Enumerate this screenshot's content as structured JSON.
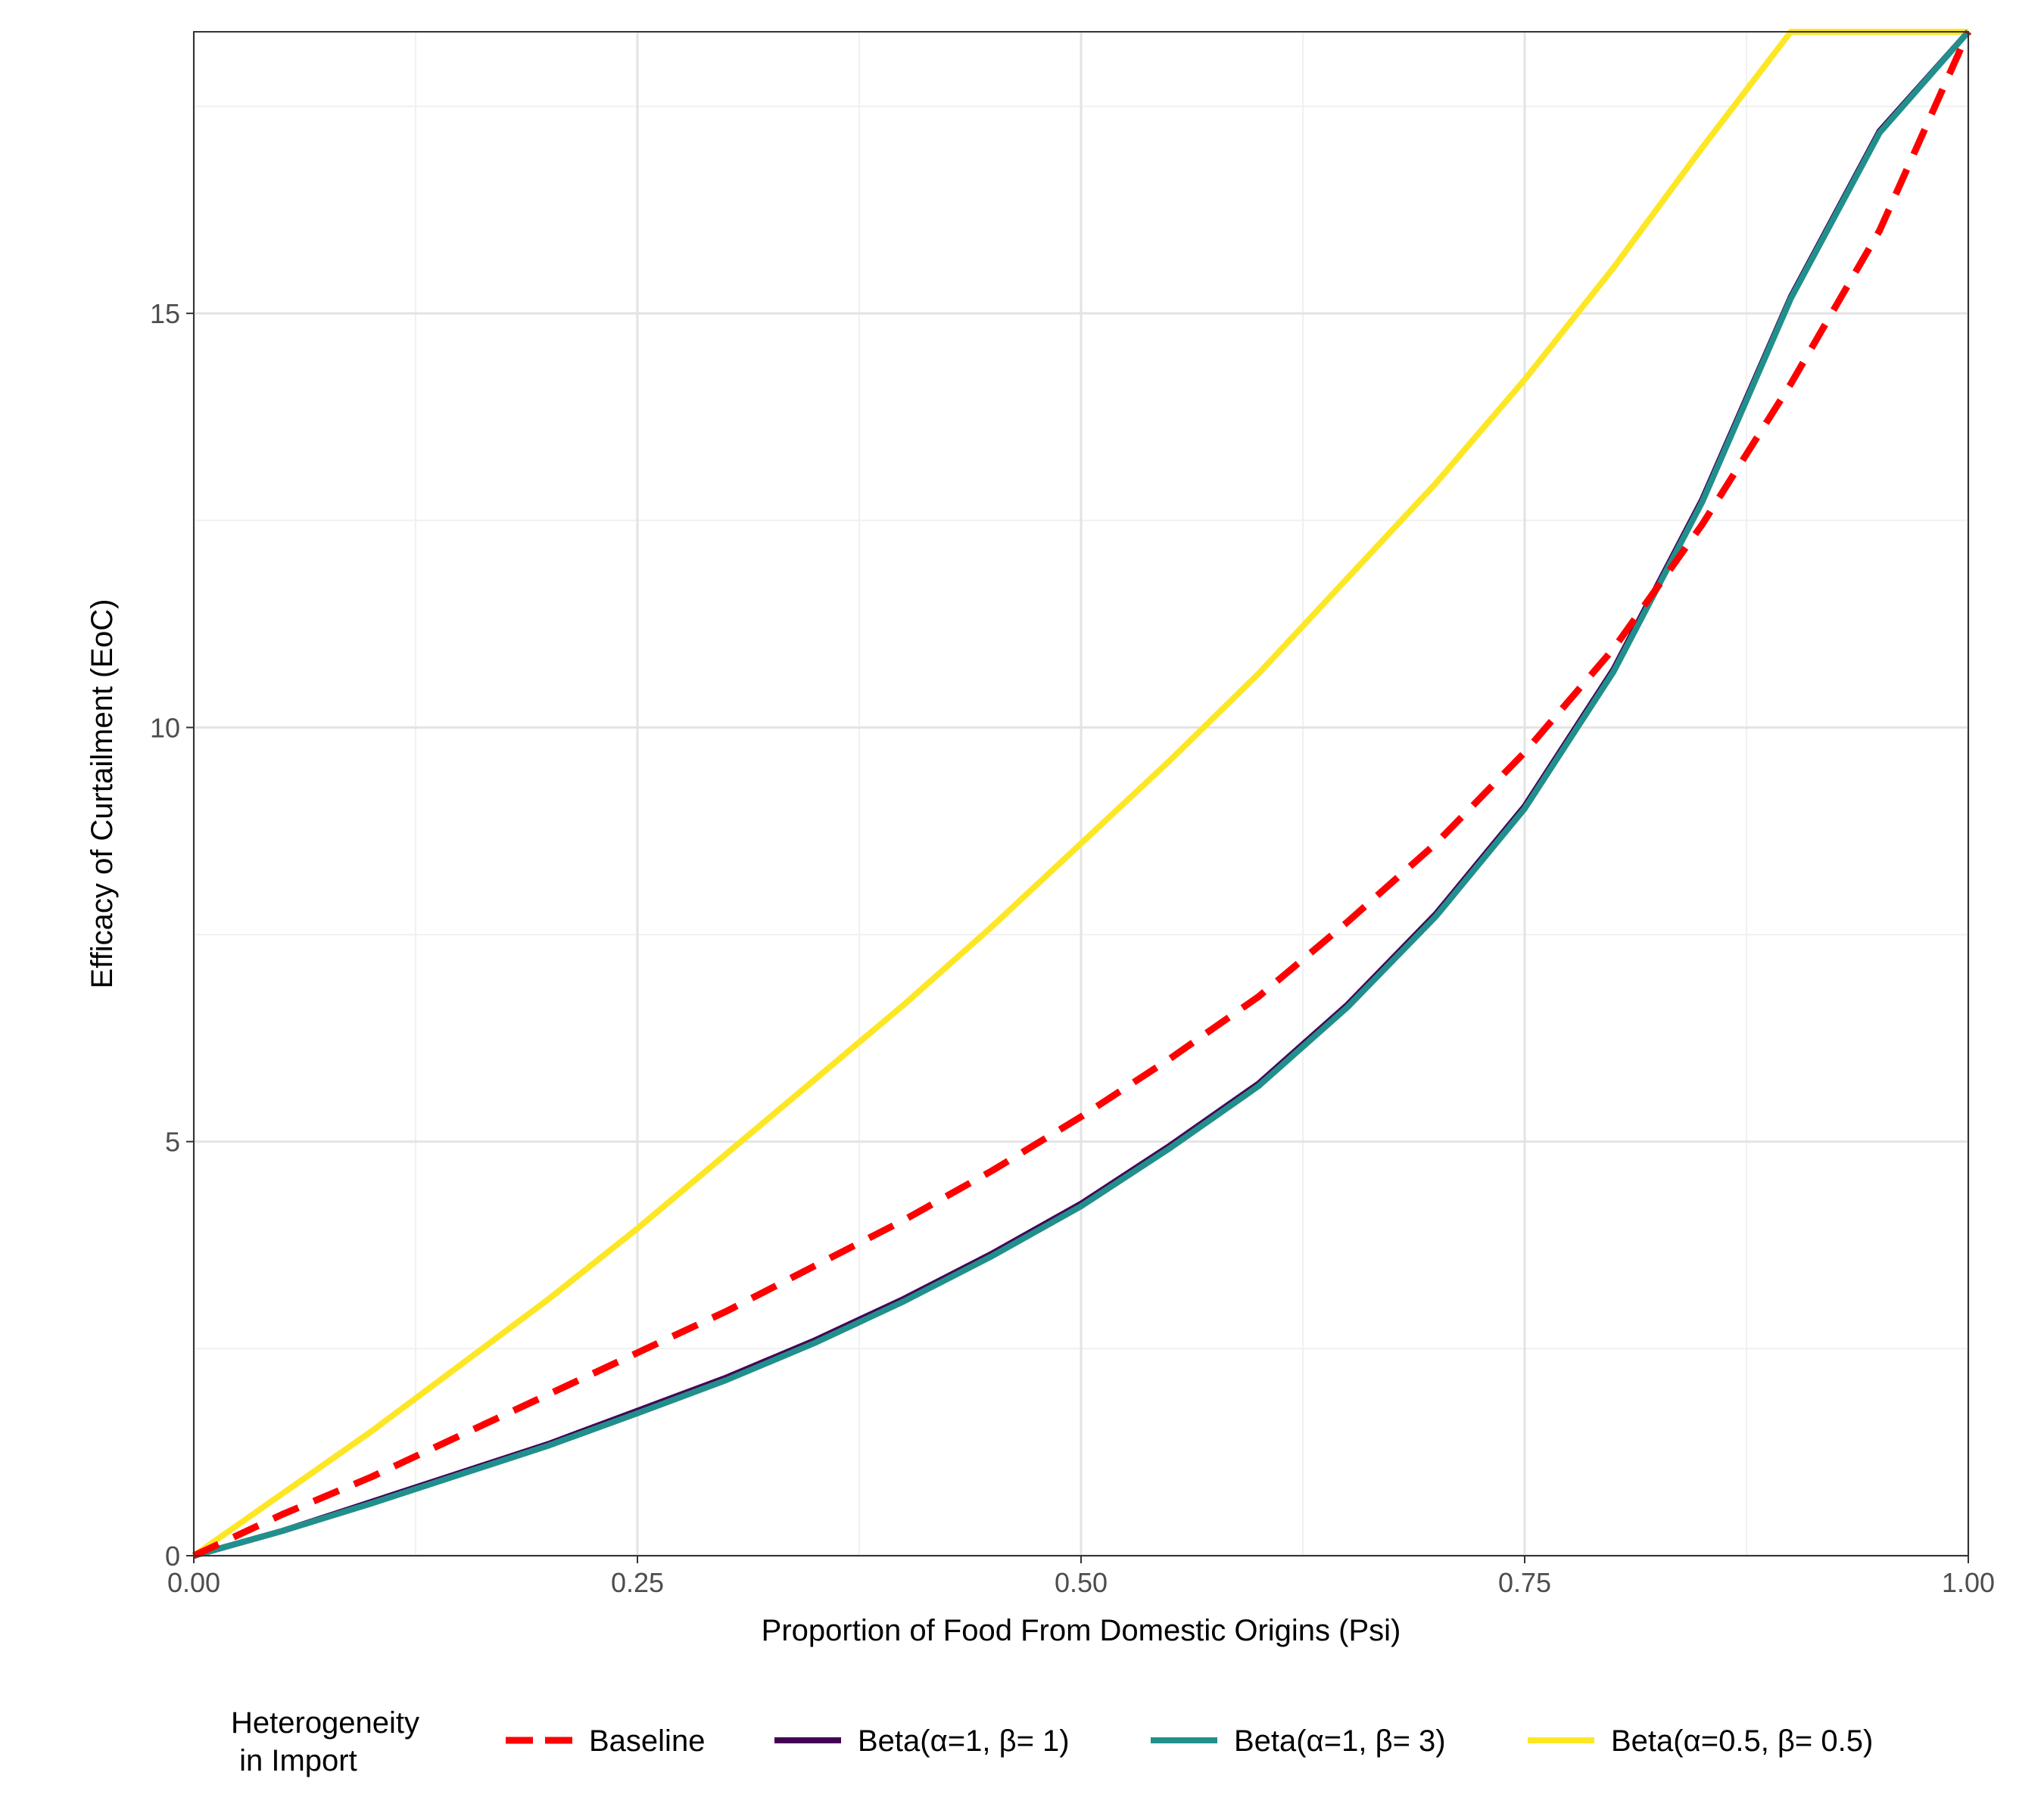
{
  "chart_data": {
    "type": "line",
    "title": "",
    "xlabel": "Proportion of Food From Domestic Origins (Psi)",
    "ylabel": "Efficacy of Curtailment (EoC)",
    "xlim": [
      0,
      1
    ],
    "ylim": [
      0,
      18.4
    ],
    "x_ticks": [
      {
        "value": 0.0,
        "label": "0.00"
      },
      {
        "value": 0.25,
        "label": "0.25"
      },
      {
        "value": 0.5,
        "label": "0.50"
      },
      {
        "value": 0.75,
        "label": "0.75"
      },
      {
        "value": 1.0,
        "label": "1.00"
      }
    ],
    "y_ticks": [
      {
        "value": 0,
        "label": "0"
      },
      {
        "value": 5,
        "label": "5"
      },
      {
        "value": 10,
        "label": "10"
      },
      {
        "value": 15,
        "label": "15"
      }
    ],
    "x_minor": [
      0.125,
      0.375,
      0.625,
      0.875
    ],
    "y_minor": [
      2.5,
      7.5,
      12.5,
      17.5
    ],
    "grid": true,
    "legend_title": "Heterogeneity\n in Import",
    "legend_position": "bottom",
    "x": [
      0.0,
      0.05,
      0.1,
      0.15,
      0.2,
      0.25,
      0.3,
      0.35,
      0.4,
      0.45,
      0.5,
      0.55,
      0.6,
      0.65,
      0.7,
      0.75,
      0.8,
      0.85,
      0.9,
      0.95,
      1.0
    ],
    "series": [
      {
        "name": "Baseline",
        "color": "#ff0000",
        "dashed": true,
        "values": [
          0.0,
          0.5,
          0.95,
          1.45,
          1.95,
          2.45,
          2.95,
          3.5,
          4.05,
          4.65,
          5.3,
          6.0,
          6.75,
          7.65,
          8.6,
          9.7,
          10.95,
          12.45,
          14.15,
          16.0,
          18.4
        ]
      },
      {
        "name": "Beta(α=1, β= 1)",
        "color": "#440154",
        "dashed": false,
        "values": [
          0.0,
          0.3,
          0.65,
          1.0,
          1.35,
          1.75,
          2.15,
          2.6,
          3.1,
          3.65,
          4.25,
          4.95,
          5.7,
          6.65,
          7.75,
          9.05,
          10.7,
          12.75,
          15.2,
          17.2,
          18.4
        ]
      },
      {
        "name": "Beta(α=1, β= 3)",
        "color": "#21908c",
        "dashed": false,
        "values": [
          0.0,
          0.3,
          0.63,
          0.98,
          1.33,
          1.72,
          2.12,
          2.57,
          3.07,
          3.62,
          4.22,
          4.92,
          5.67,
          6.62,
          7.72,
          9.02,
          10.67,
          12.72,
          15.18,
          17.18,
          18.4
        ]
      },
      {
        "name": "Beta(α=0.5, β= 0.5)",
        "color": "#fde725",
        "dashed": false,
        "values": [
          0.0,
          0.75,
          1.5,
          2.3,
          3.1,
          3.95,
          4.85,
          5.75,
          6.65,
          7.6,
          8.6,
          9.6,
          10.65,
          11.8,
          12.95,
          14.2,
          15.55,
          17.0,
          18.4,
          18.4,
          18.4
        ]
      }
    ]
  }
}
